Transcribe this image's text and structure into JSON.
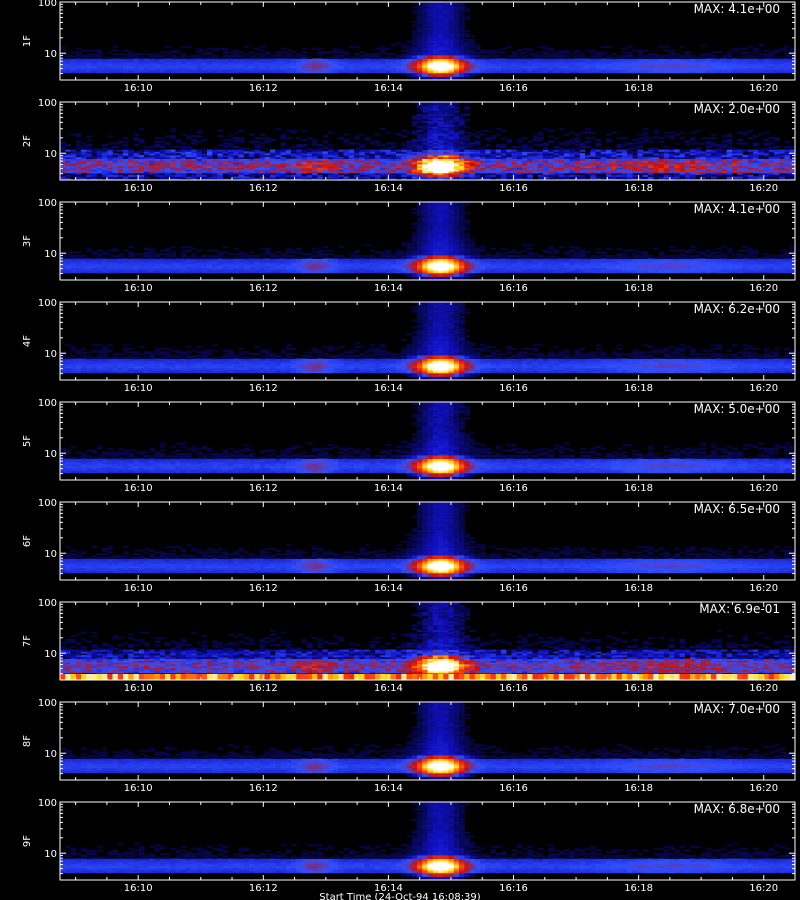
{
  "chart_data": {
    "type": "heatmap",
    "subtype": "spectrogram-stack",
    "y_scale": "log",
    "ylim": [
      3,
      100
    ],
    "y_ticks": [
      10,
      100
    ],
    "y_tick_labels": [
      "10",
      "100"
    ],
    "x_range": [
      "16:08:45",
      "16:20:30"
    ],
    "x_ticks": [
      "16:10",
      "16:12",
      "16:14",
      "16:16",
      "16:18",
      "16:20"
    ],
    "xlabel": "Start Time (24-Oct-94 16:08:39)",
    "colormap": [
      "#000000",
      "#1010c0",
      "#3050ff",
      "#c01010",
      "#ff4010",
      "#ffd000",
      "#ffffff"
    ],
    "background_color": "#000000",
    "axis_color": "#ffffff",
    "features": {
      "flare_peak_time": "16:14:50",
      "flare_start": "16:14:25",
      "flare_end": "16:15:20",
      "emission_band_y": [
        4,
        8
      ],
      "secondary_enhancement_time": "16:12:50",
      "late_enhancement_time": "16:18:30"
    },
    "panels": [
      {
        "label": "1F",
        "max_text": "MAX: 4.1e+00",
        "max": 4.1,
        "noise": 0.3
      },
      {
        "label": "2F",
        "max_text": "MAX: 2.0e+00",
        "max": 2.0,
        "noise": 1.0
      },
      {
        "label": "3F",
        "max_text": "MAX: 4.1e+00",
        "max": 4.1,
        "noise": 0.3
      },
      {
        "label": "4F",
        "max_text": "MAX: 6.2e+00",
        "max": 6.2,
        "noise": 0.35
      },
      {
        "label": "5F",
        "max_text": "MAX: 5.0e+00",
        "max": 5.0,
        "noise": 0.4
      },
      {
        "label": "6F",
        "max_text": "MAX: 6.5e+00",
        "max": 6.5,
        "noise": 0.3
      },
      {
        "label": "7F",
        "max_text": "MAX: 6.9e-01",
        "max": 0.69,
        "noise": 0.8,
        "bottom_row_saturated": true
      },
      {
        "label": "8F",
        "max_text": "MAX: 7.0e+00",
        "max": 7.0,
        "noise": 0.3
      },
      {
        "label": "9F",
        "max_text": "MAX: 6.8e+00",
        "max": 6.8,
        "noise": 0.35
      }
    ]
  }
}
